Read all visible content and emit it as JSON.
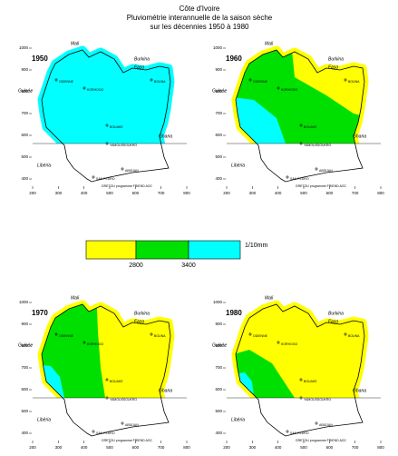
{
  "header": {
    "title": [
      "Côte d'Ivoire",
      "Pluviométrie interannuelle de la saison sèche",
      "sur les décennies 1950 à 1980"
    ]
  },
  "legend": {
    "colors": [
      "#ffff00",
      "#00e000",
      "#00ffff"
    ],
    "labels": [
      "2800",
      "3400"
    ],
    "unit": "1/10mm"
  },
  "map": {
    "xlim": [
      200,
      800
    ],
    "ylim": [
      400,
      1000
    ],
    "xticks": [
      200,
      300,
      400,
      500,
      600,
      700,
      800
    ],
    "yticks": [
      400,
      500,
      600,
      700,
      800,
      900,
      1000
    ],
    "places": [
      "Mali",
      "Burkina",
      "Faso",
      "Guinée",
      "Ghana",
      "Libéria"
    ],
    "cities": [
      "ODIENNE",
      "KORHOGO",
      "BOUNA",
      "BOUAKE",
      "YAMOUSSOUKRO",
      "SAN PEDRO",
      "ABIDJAN"
    ],
    "credit": "GRETOU programme FRIEND AOC"
  },
  "panels": [
    {
      "label": "1950",
      "zones": [
        2
      ],
      "halo": 2
    },
    {
      "label": "1960",
      "zones": [
        0,
        1,
        2
      ],
      "halo": 0
    },
    {
      "label": "1970",
      "zones": [
        0,
        1,
        2
      ],
      "halo": 0
    },
    {
      "label": "1980",
      "zones": [
        0,
        1,
        2
      ],
      "halo": 0
    }
  ]
}
